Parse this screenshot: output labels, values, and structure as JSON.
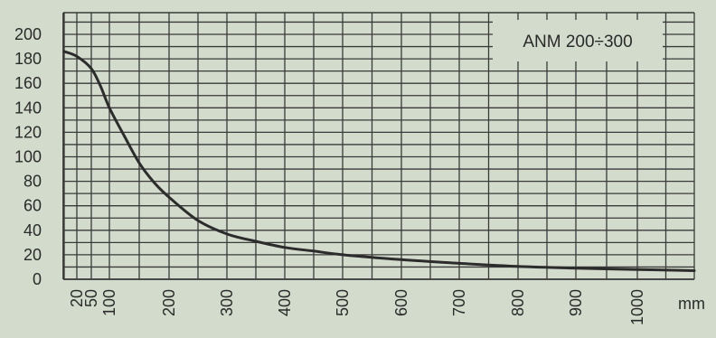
{
  "chart_data": {
    "type": "line",
    "title": "",
    "legend_box": "ANM 200÷300",
    "xlabel": "",
    "ylabel": "",
    "x_unit": "mm",
    "x_ticks": [
      20,
      50,
      100,
      200,
      300,
      400,
      500,
      600,
      700,
      800,
      900,
      1000
    ],
    "y_ticks": [
      0,
      20,
      40,
      60,
      80,
      100,
      120,
      140,
      160,
      180,
      200
    ],
    "xlim": [
      0,
      1100
    ],
    "ylim": [
      0,
      215
    ],
    "grid": true,
    "series": [
      {
        "x": [
          0,
          20,
          50,
          75,
          100,
          125,
          150,
          175,
          200,
          250,
          300,
          350,
          400,
          450,
          500,
          600,
          700,
          800,
          900,
          1000,
          1100
        ],
        "y": [
          186,
          182,
          172,
          158,
          140,
          117,
          95,
          79,
          67,
          48,
          37,
          31,
          26,
          23,
          20,
          16,
          13,
          10.5,
          9,
          8,
          7
        ]
      }
    ]
  },
  "colors": {
    "background": "#d3dccc",
    "grid": "#3a3a3a",
    "line": "#2c2c2c"
  }
}
